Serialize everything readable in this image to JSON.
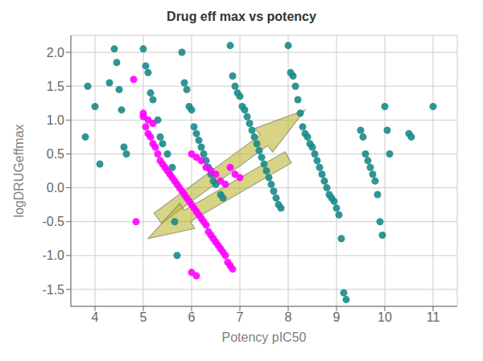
{
  "chart_data": {
    "type": "scatter",
    "title": "Drug eff max vs potency",
    "xlabel": "Potency pIC50",
    "ylabel": "logDRUGeffmax",
    "xlim": [
      3.5,
      11.5
    ],
    "ylim": [
      -1.75,
      2.25
    ],
    "xticks": [
      4,
      5,
      6,
      7,
      8,
      9,
      10,
      11
    ],
    "yticks": [
      -1.5,
      {
        "value": -1.0,
        "label": "-1.0"
      },
      -0.5,
      {
        "value": 0.0,
        "label": "0.0"
      },
      0.5,
      {
        "value": 1.0,
        "label": "1.0"
      },
      1.5,
      {
        "value": 2.0,
        "label": "2.0"
      }
    ],
    "grid": true,
    "series": [
      {
        "color": "#1a8a8a",
        "values": [
          [
            3.8,
            0.75
          ],
          [
            3.85,
            1.5
          ],
          [
            4.0,
            1.2
          ],
          [
            4.1,
            0.35
          ],
          [
            4.3,
            1.55
          ],
          [
            4.4,
            2.05
          ],
          [
            4.45,
            1.85
          ],
          [
            4.5,
            1.45
          ],
          [
            4.55,
            1.15
          ],
          [
            4.6,
            0.6
          ],
          [
            4.65,
            0.5
          ],
          [
            5.0,
            2.05
          ],
          [
            5.05,
            1.8
          ],
          [
            5.1,
            1.7
          ],
          [
            5.15,
            1.4
          ],
          [
            5.2,
            1.3
          ],
          [
            5.3,
            1.0
          ],
          [
            5.35,
            0.75
          ],
          [
            5.4,
            0.65
          ],
          [
            5.5,
            0.5
          ],
          [
            5.6,
            0.3
          ],
          [
            5.65,
            -0.5
          ],
          [
            5.7,
            -1.0
          ],
          [
            5.8,
            2.0
          ],
          [
            5.85,
            1.55
          ],
          [
            5.9,
            1.45
          ],
          [
            5.95,
            1.2
          ],
          [
            6.0,
            1.15
          ],
          [
            6.05,
            0.9
          ],
          [
            6.1,
            0.8
          ],
          [
            6.15,
            0.7
          ],
          [
            6.2,
            0.6
          ],
          [
            6.25,
            0.5
          ],
          [
            6.3,
            0.4
          ],
          [
            6.35,
            0.3
          ],
          [
            6.4,
            0.2
          ],
          [
            6.45,
            0.1
          ],
          [
            6.5,
            0.05
          ],
          [
            6.6,
            -0.1
          ],
          [
            6.65,
            -0.15
          ],
          [
            6.8,
            2.1
          ],
          [
            6.85,
            1.65
          ],
          [
            6.9,
            1.5
          ],
          [
            6.95,
            1.4
          ],
          [
            7.0,
            1.35
          ],
          [
            7.05,
            1.2
          ],
          [
            7.1,
            1.15
          ],
          [
            7.15,
            1.05
          ],
          [
            7.2,
            0.95
          ],
          [
            7.25,
            0.85
          ],
          [
            7.3,
            0.75
          ],
          [
            7.35,
            0.65
          ],
          [
            7.4,
            0.55
          ],
          [
            7.45,
            0.45
          ],
          [
            7.5,
            0.35
          ],
          [
            7.55,
            0.25
          ],
          [
            7.6,
            0.15
          ],
          [
            7.65,
            0.05
          ],
          [
            7.7,
            -0.05
          ],
          [
            7.75,
            -0.15
          ],
          [
            7.8,
            -0.25
          ],
          [
            7.85,
            -0.3
          ],
          [
            8.0,
            2.1
          ],
          [
            8.05,
            1.7
          ],
          [
            8.1,
            1.65
          ],
          [
            8.15,
            1.5
          ],
          [
            8.2,
            1.3
          ],
          [
            8.25,
            1.1
          ],
          [
            8.3,
            0.9
          ],
          [
            8.35,
            0.8
          ],
          [
            8.4,
            0.75
          ],
          [
            8.45,
            0.65
          ],
          [
            8.5,
            0.6
          ],
          [
            8.55,
            0.5
          ],
          [
            8.6,
            0.4
          ],
          [
            8.65,
            0.3
          ],
          [
            8.7,
            0.2
          ],
          [
            8.75,
            0.1
          ],
          [
            8.8,
            0.0
          ],
          [
            8.85,
            -0.1
          ],
          [
            8.9,
            -0.15
          ],
          [
            8.95,
            -0.2
          ],
          [
            9.0,
            -0.3
          ],
          [
            9.05,
            -0.4
          ],
          [
            9.1,
            -0.75
          ],
          [
            9.15,
            -1.55
          ],
          [
            9.2,
            -1.65
          ],
          [
            9.5,
            0.85
          ],
          [
            9.55,
            0.75
          ],
          [
            9.6,
            0.5
          ],
          [
            9.65,
            0.4
          ],
          [
            9.7,
            0.3
          ],
          [
            9.75,
            0.2
          ],
          [
            9.8,
            0.1
          ],
          [
            9.85,
            -0.1
          ],
          [
            9.9,
            -0.5
          ],
          [
            9.95,
            -0.7
          ],
          [
            10.0,
            1.2
          ],
          [
            10.05,
            0.85
          ],
          [
            10.1,
            0.5
          ],
          [
            10.5,
            0.8
          ],
          [
            10.55,
            0.75
          ],
          [
            11.0,
            1.2
          ]
        ]
      },
      {
        "color": "#FF00FF",
        "values": [
          [
            4.8,
            1.6
          ],
          [
            4.85,
            -0.5
          ],
          [
            5.0,
            1.05
          ],
          [
            5.05,
            0.9
          ],
          [
            5.1,
            0.8
          ],
          [
            5.15,
            0.75
          ],
          [
            5.2,
            0.65
          ],
          [
            5.25,
            0.6
          ],
          [
            5.3,
            0.5
          ],
          [
            5.35,
            0.4
          ],
          [
            5.4,
            0.35
          ],
          [
            5.45,
            0.3
          ],
          [
            5.5,
            0.25
          ],
          [
            5.55,
            0.2
          ],
          [
            5.6,
            0.15
          ],
          [
            5.65,
            0.1
          ],
          [
            5.7,
            0.05
          ],
          [
            5.75,
            0.0
          ],
          [
            5.8,
            -0.05
          ],
          [
            5.85,
            -0.1
          ],
          [
            5.9,
            -0.15
          ],
          [
            5.95,
            -0.2
          ],
          [
            6.0,
            -0.25
          ],
          [
            6.05,
            -0.3
          ],
          [
            6.1,
            -0.35
          ],
          [
            6.15,
            -0.4
          ],
          [
            6.2,
            -0.45
          ],
          [
            6.25,
            -0.5
          ],
          [
            6.3,
            -0.55
          ],
          [
            6.35,
            -0.65
          ],
          [
            6.4,
            -0.7
          ],
          [
            6.45,
            -0.75
          ],
          [
            6.5,
            -0.8
          ],
          [
            6.55,
            -0.85
          ],
          [
            6.6,
            -0.9
          ],
          [
            6.65,
            -0.95
          ],
          [
            6.7,
            -1.0
          ],
          [
            6.75,
            -1.1
          ],
          [
            6.8,
            -1.15
          ],
          [
            6.85,
            -1.2
          ],
          [
            5.0,
            1.1
          ],
          [
            5.1,
            1.0
          ],
          [
            5.2,
            0.95
          ],
          [
            6.0,
            0.5
          ],
          [
            6.1,
            0.45
          ],
          [
            6.2,
            0.4
          ],
          [
            6.3,
            0.3
          ],
          [
            6.4,
            0.25
          ],
          [
            6.5,
            0.2
          ],
          [
            6.6,
            0.1
          ],
          [
            6.7,
            0.05
          ],
          [
            6.8,
            0.3
          ],
          [
            6.9,
            0.2
          ],
          [
            7.0,
            0.15
          ],
          [
            6.0,
            -1.25
          ],
          [
            6.1,
            -1.3
          ]
        ]
      }
    ],
    "arrows": [
      {
        "start": [
          5.3,
          -0.45
        ],
        "end": [
          8.35,
          1.15
        ],
        "color": "#b8b020"
      },
      {
        "start": [
          8.0,
          0.45
        ],
        "end": [
          5.1,
          -0.75
        ],
        "color": "#b8b020"
      }
    ]
  }
}
